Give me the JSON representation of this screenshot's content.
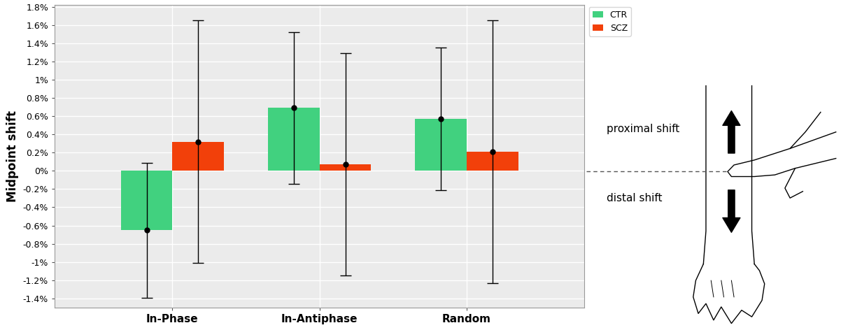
{
  "chart_data": {
    "type": "bar",
    "y_label": "Midpoint shift",
    "categories": [
      "In-Phase",
      "In-Antiphase",
      "Random"
    ],
    "series": [
      {
        "name": "CTR",
        "color": "#41d17f",
        "values": [
          -0.65,
          0.69,
          0.57
        ],
        "errors": [
          0.74,
          0.83,
          0.78
        ],
        "marker": "circle"
      },
      {
        "name": "SCZ",
        "color": "#f2400a",
        "values": [
          0.32,
          0.07,
          0.21
        ],
        "errors": [
          1.33,
          1.22,
          1.44
        ],
        "marker": "circle"
      }
    ],
    "ylim": [
      -1.5,
      1.82
    ],
    "yticks": [
      {
        "value": -1.4,
        "label": "-1.4%"
      },
      {
        "value": -1.2,
        "label": "-1.2%"
      },
      {
        "value": -1,
        "label": "-1%"
      },
      {
        "value": -0.8,
        "label": "-0.8%"
      },
      {
        "value": -0.6,
        "label": "-0.6%"
      },
      {
        "value": -0.4,
        "label": "-0.4%"
      },
      {
        "value": -0.2,
        "label": "-0.2%"
      },
      {
        "value": 0,
        "label": "0%"
      },
      {
        "value": 0.2,
        "label": "0.2%"
      },
      {
        "value": 0.4,
        "label": "0.4%"
      },
      {
        "value": 0.6,
        "label": "0.6%"
      },
      {
        "value": 0.8,
        "label": "0.8%"
      },
      {
        "value": 1,
        "label": "1%"
      },
      {
        "value": 1.2,
        "label": "1.2%"
      },
      {
        "value": 1.4,
        "label": "1.4%"
      },
      {
        "value": 1.6,
        "label": "1.6%"
      },
      {
        "value": 1.8,
        "label": "1.8%"
      }
    ],
    "grid": true,
    "legend": "upper left",
    "diagram": {
      "upper_label": "proximal shift",
      "lower_label": "distal shift"
    }
  }
}
